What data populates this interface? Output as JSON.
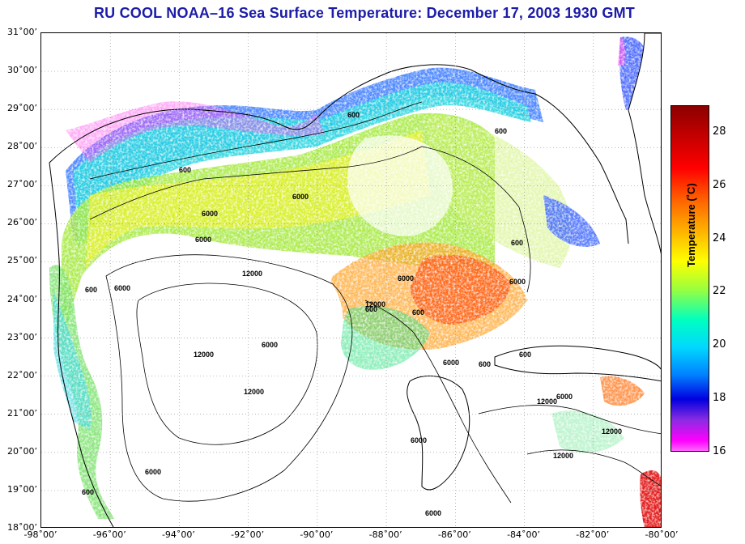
{
  "title": "RU COOL  NOAA–16  Sea Surface Temperature:  December 17, 2003 1930 GMT",
  "map": {
    "lat_labels": [
      "31˚00’",
      "30˚00’",
      "29˚00’",
      "28˚00’",
      "27˚00’",
      "26˚00’",
      "25˚00’",
      "24˚00’",
      "23˚00’",
      "22˚00’",
      "21˚00’",
      "20˚00’",
      "19˚00’",
      "18˚00’"
    ],
    "lon_labels": [
      "-98˚00’",
      "-96˚00’",
      "-94˚00’",
      "-92˚00’",
      "-90˚00’",
      "-88˚00’",
      "-86˚00’",
      "-84˚00’",
      "-82˚00’",
      "-80˚00’"
    ],
    "contour_labels": [
      "600",
      "6000",
      "600",
      "6000",
      "6000",
      "600",
      "6000",
      "12000",
      "600",
      "6000",
      "12000",
      "600",
      "6000",
      "6000",
      "12000",
      "600",
      "6000",
      "12000",
      "600",
      "6000",
      "6000",
      "12000",
      "600",
      "6000",
      "12000",
      "12000",
      "6000",
      "600",
      "600"
    ]
  },
  "colorbar": {
    "label": "Temperature (˚C)",
    "ticks": [
      "28",
      "26",
      "24",
      "22",
      "20",
      "18",
      "16"
    ],
    "min": 16,
    "max": 29
  }
}
